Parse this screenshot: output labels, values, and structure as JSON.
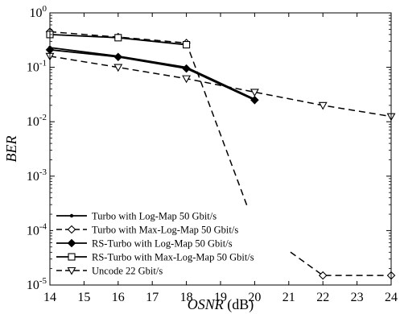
{
  "chart_data": {
    "type": "line",
    "xlabel_italic": "OSNR",
    "xlabel_unit": " (dB)",
    "ylabel": "BER",
    "yscale": "log",
    "xlim": [
      14,
      24
    ],
    "ylim": [
      1e-05,
      1
    ],
    "xticks": [
      14,
      15,
      16,
      17,
      18,
      19,
      20,
      21,
      22,
      23,
      24
    ],
    "xtick_labels": [
      "14",
      "15",
      "16",
      "17",
      "18",
      "19",
      "20",
      "21",
      "22",
      "23",
      "24"
    ],
    "yticks": [
      {
        "value": 1,
        "base": "10",
        "exp": "0"
      },
      {
        "value": 0.1,
        "base": "10",
        "exp": "-1"
      },
      {
        "value": 0.01,
        "base": "10",
        "exp": "-2"
      },
      {
        "value": 0.001,
        "base": "10",
        "exp": "-3"
      },
      {
        "value": 0.0001,
        "base": "10",
        "exp": "-4"
      },
      {
        "value": 1e-05,
        "base": "10",
        "exp": "-5"
      }
    ],
    "grid": false,
    "legend_position": "bottom-left",
    "series": [
      {
        "name": "Turbo with Log-Map 50 Gbit/s",
        "dash": "solid",
        "marker": "dot",
        "x": [
          14,
          16,
          18,
          20
        ],
        "y": [
          0.23,
          0.16,
          0.1,
          0.026
        ]
      },
      {
        "name": "Turbo with Max-Log-Map 50 Gbit/s",
        "dash": "dashed",
        "marker": "diamond",
        "x": [
          14,
          16,
          18,
          20,
          22,
          24
        ],
        "y": [
          0.45,
          0.36,
          0.28,
          0.00012,
          1.5e-05,
          1.5e-05
        ]
      },
      {
        "name": "RS-Turbo with Log-Map 50 Gbit/s",
        "dash": "solid",
        "marker": "diamond-filled",
        "x": [
          14,
          16,
          18,
          20
        ],
        "y": [
          0.21,
          0.155,
          0.095,
          0.025
        ]
      },
      {
        "name": "RS-Turbo with Max-Log-Map 50 Gbit/s",
        "dash": "solid",
        "marker": "square",
        "x": [
          14,
          16,
          18
        ],
        "y": [
          0.4,
          0.35,
          0.26
        ]
      },
      {
        "name": "Uncode 22 Gbit/s",
        "dash": "dashed",
        "marker": "triangle-down",
        "x": [
          14,
          16,
          18,
          20,
          22,
          24
        ],
        "y": [
          0.16,
          0.1,
          0.062,
          0.035,
          0.02,
          0.0125
        ]
      }
    ]
  }
}
